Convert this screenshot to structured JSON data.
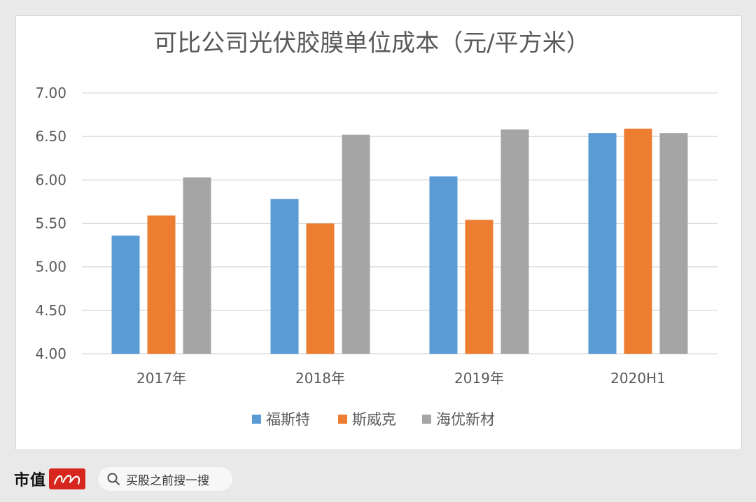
{
  "chart_data": {
    "type": "bar",
    "title": "可比公司光伏胶膜单位成本（元/平方米）",
    "categories": [
      "2017年",
      "2018年",
      "2019年",
      "2020H1"
    ],
    "series": [
      {
        "name": "福斯特",
        "color": "#5b9bd5",
        "values": [
          5.36,
          5.78,
          6.04,
          6.54
        ]
      },
      {
        "name": "斯威克",
        "color": "#ed7d31",
        "values": [
          5.59,
          5.5,
          5.54,
          6.59
        ]
      },
      {
        "name": "海优新材",
        "color": "#a5a5a5",
        "values": [
          6.03,
          6.52,
          6.58,
          6.54
        ]
      }
    ],
    "ylim": [
      4.0,
      7.0
    ],
    "yticks": [
      "4.00",
      "4.50",
      "5.00",
      "5.50",
      "6.00",
      "6.50",
      "7.00"
    ],
    "grid": true,
    "legend_position": "bottom"
  },
  "footer": {
    "brand": "市值",
    "logo_icon": "brand-logo-icon",
    "search_icon": "search-icon",
    "search_text": "买股之前搜一搜"
  }
}
